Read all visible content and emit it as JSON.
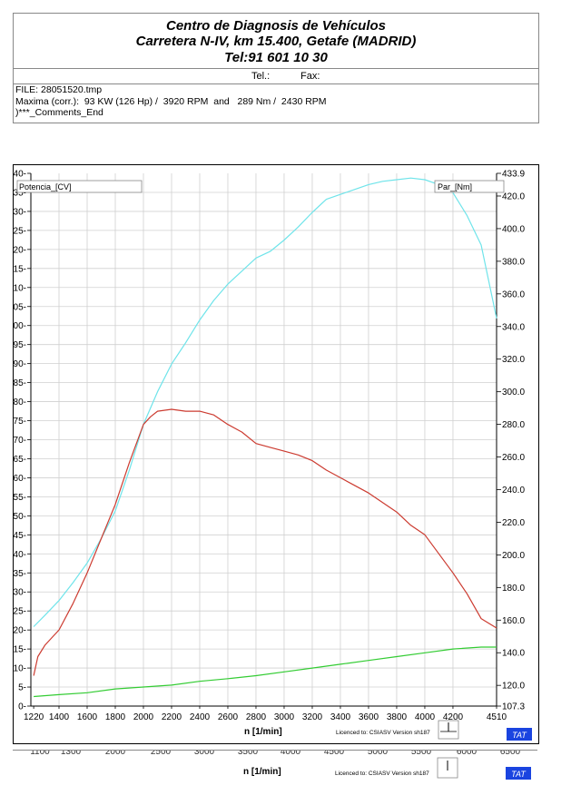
{
  "header": {
    "line1": "Centro de Diagnosis de Vehículos",
    "line2": "Carretera N-IV, km 15.400, Getafe (MADRID)",
    "line3": "Tel:91 601 10 30",
    "tel_label": "Tel.:",
    "fax_label": "Fax:"
  },
  "info": {
    "file": "FILE: 28051520.tmp",
    "maxima": "Maxima (corr.):  93 KW (126 Hp) /  3920 RPM  and   289 Nm /  2430 RPM",
    "comments": ")***_Comments_End"
  },
  "footer": {
    "xlabel": "n  [1/min]",
    "licence": "Licenced to: CSIASV   Version sh187",
    "brand": "TAT",
    "strip_ticks": [
      "1100",
      "1300",
      "2000",
      "2500",
      "3000",
      "3500",
      "4000",
      "4500",
      "5000",
      "5500",
      "6000",
      "6500"
    ]
  },
  "chart_data": {
    "type": "line",
    "x_name": "n [1/min]",
    "xlim": [
      1200,
      4510
    ],
    "x_ticks": [
      1220,
      1400,
      1600,
      1800,
      2000,
      2200,
      2400,
      2600,
      2800,
      3000,
      3200,
      3400,
      3600,
      3800,
      4000,
      4200,
      4510
    ],
    "y_left": {
      "label": "Potencia_[CV]",
      "range": [
        0,
        140
      ],
      "ticks": [
        0,
        5,
        10,
        15,
        20,
        25,
        30,
        35,
        40,
        45,
        50,
        55,
        60,
        65,
        70,
        75,
        80,
        85,
        90,
        95,
        100,
        105,
        110,
        115,
        120,
        125,
        130,
        135,
        140
      ]
    },
    "y_right": {
      "label": "Par_[Nm]",
      "range": [
        107.3,
        433.9
      ],
      "ticks": [
        107.3,
        120.0,
        140.0,
        160.0,
        180.0,
        200.0,
        220.0,
        240.0,
        260.0,
        280.0,
        300.0,
        320.0,
        340.0,
        360.0,
        380.0,
        400.0,
        420.0,
        433.9
      ]
    },
    "grid": true,
    "series": [
      {
        "axis": "right",
        "color": "#6fe4ea",
        "x": [
          1220,
          1300,
          1400,
          1500,
          1600,
          1700,
          1800,
          1900,
          2000,
          2100,
          2200,
          2300,
          2400,
          2500,
          2600,
          2700,
          2800,
          2900,
          3000,
          3100,
          3200,
          3300,
          3400,
          3500,
          3600,
          3700,
          3800,
          3900,
          4000,
          4100,
          4200,
          4300,
          4400,
          4510
        ],
        "y": [
          156,
          163,
          172,
          183,
          195,
          210,
          227,
          252,
          280,
          300,
          317,
          330,
          344,
          356,
          366,
          374,
          382,
          386,
          393,
          401,
          410,
          418,
          421,
          424,
          427,
          429,
          430,
          431,
          430,
          427,
          422,
          408,
          390,
          345
        ]
      },
      {
        "axis": "left",
        "color": "#cc3b30",
        "x": [
          1220,
          1250,
          1300,
          1400,
          1500,
          1600,
          1700,
          1800,
          1900,
          2000,
          2050,
          2100,
          2200,
          2300,
          2400,
          2500,
          2600,
          2700,
          2800,
          2900,
          3000,
          3100,
          3200,
          3300,
          3400,
          3500,
          3600,
          3700,
          3800,
          3900,
          4000,
          4100,
          4200,
          4300,
          4400,
          4510
        ],
        "y": [
          8,
          13,
          16,
          20,
          27,
          35,
          44,
          53,
          64,
          74,
          76,
          77.5,
          78,
          77.5,
          77.5,
          76.5,
          74,
          72,
          69,
          68,
          67,
          66,
          64.5,
          62,
          60,
          58,
          56,
          53.5,
          51,
          47.5,
          45,
          40,
          35,
          29.5,
          23,
          20.5
        ]
      },
      {
        "axis": "left",
        "color": "#33cc33",
        "x": [
          1220,
          1400,
          1600,
          1800,
          2000,
          2200,
          2400,
          2600,
          2800,
          3000,
          3200,
          3400,
          3600,
          3800,
          4000,
          4200,
          4400,
          4510
        ],
        "y": [
          2.5,
          3,
          3.5,
          4.5,
          5,
          5.5,
          6.5,
          7.2,
          8,
          9,
          10,
          11,
          12,
          13,
          14,
          15,
          15.5,
          15.5
        ]
      }
    ]
  }
}
